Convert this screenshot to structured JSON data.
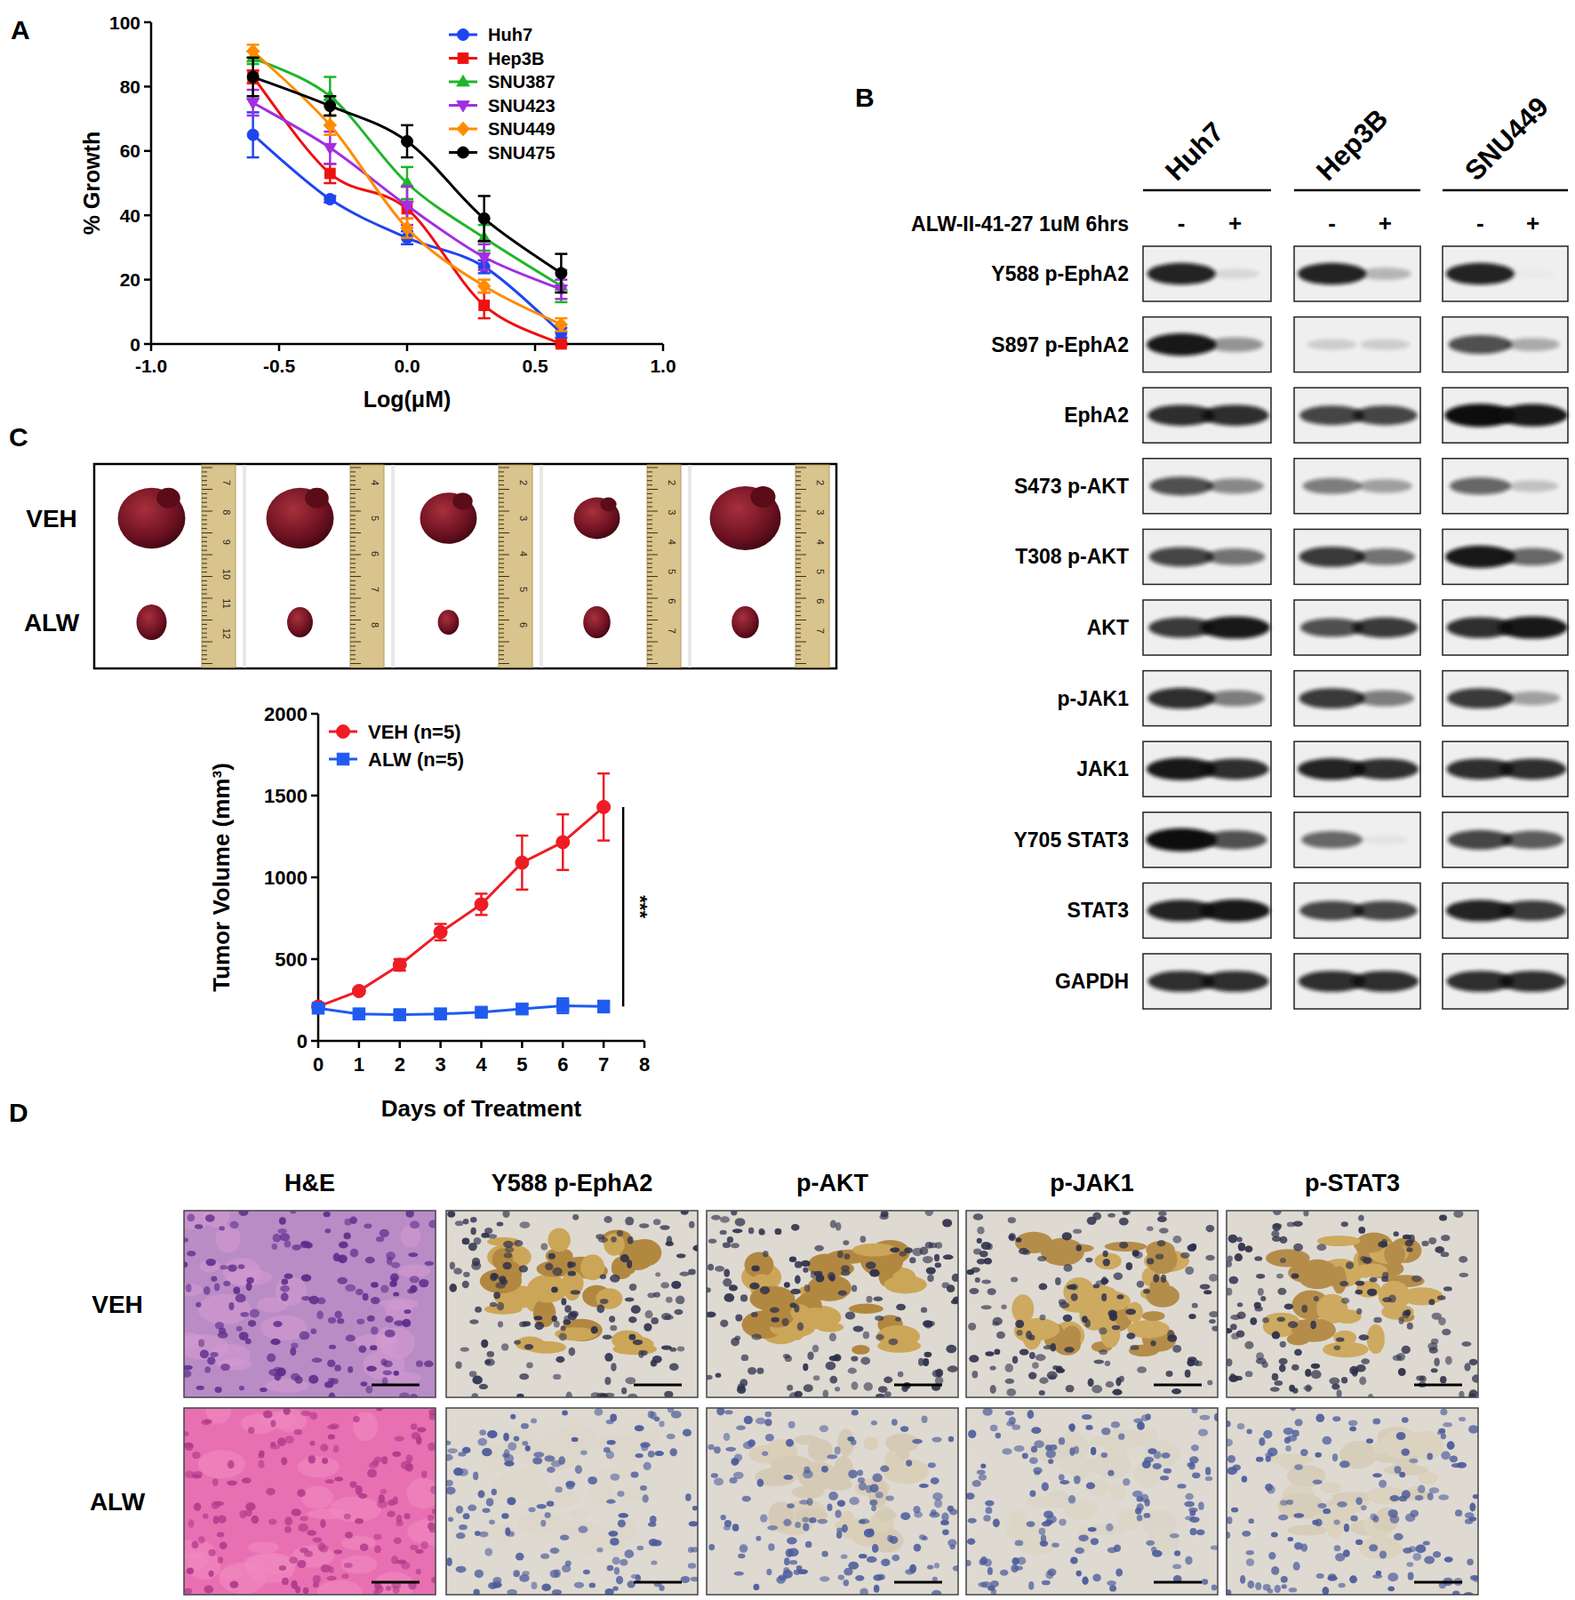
{
  "panel_labels": [
    "A",
    "B",
    "C",
    "D"
  ],
  "chart_data": [
    {
      "type": "line",
      "x_label": "Log(μM)",
      "y_label": "% Growth",
      "xlim": [
        -1,
        1
      ],
      "ylim": [
        0,
        100
      ],
      "xticks": [
        {
          "value": -1,
          "label": "-1.0"
        },
        -0.5,
        {
          "value": 0,
          "label": "0.0"
        },
        0.5,
        {
          "value": 1,
          "label": "1.0"
        }
      ],
      "yticks": [
        0,
        20,
        40,
        60,
        80,
        100
      ],
      "legend": "top-right",
      "line_style": "smooth",
      "x": [
        -0.602,
        -0.301,
        0,
        0.301,
        0.602
      ],
      "series": [
        {
          "name": "Huh7",
          "color": "#1f45f0",
          "marker": "circle",
          "values": [
            65,
            45,
            33,
            24,
            3.5
          ],
          "errors": [
            7,
            1,
            2,
            2,
            1.5
          ]
        },
        {
          "name": "Hep3B",
          "color": "#ee1111",
          "marker": "square",
          "values": [
            83,
            53,
            42,
            12,
            0
          ],
          "errors": [
            2,
            3,
            3,
            4,
            0.5
          ]
        },
        {
          "name": "SNU387",
          "color": "#1fb52a",
          "marker": "triangle-up",
          "values": [
            89,
            77,
            50,
            33,
            18
          ],
          "errors": [
            2,
            6,
            5,
            4,
            5
          ]
        },
        {
          "name": "SNU423",
          "color": "#a22ee0",
          "marker": "triangle-down",
          "values": [
            75,
            61,
            43,
            27,
            17
          ],
          "errors": [
            4,
            5,
            6,
            4,
            3
          ]
        },
        {
          "name": "SNU449",
          "color": "#ff8c00",
          "marker": "diamond",
          "values": [
            91,
            68,
            36,
            18,
            6
          ],
          "errors": [
            2,
            3,
            3,
            2,
            2
          ]
        },
        {
          "name": "SNU475",
          "color": "#000000",
          "marker": "circle",
          "values": [
            83,
            74,
            63,
            39,
            22
          ],
          "errors": [
            6,
            3,
            5,
            7,
            6
          ]
        }
      ]
    },
    {
      "type": "line",
      "x_label": "Days of Treatment",
      "y_label": "Tumor Volume (mm³)",
      "xlim": [
        0,
        8
      ],
      "ylim": [
        0,
        2000
      ],
      "xticks": [
        0,
        1,
        2,
        3,
        4,
        5,
        6,
        7,
        8
      ],
      "yticks": [
        0,
        500,
        1000,
        1500,
        2000
      ],
      "legend": "top-left",
      "line_style": "straight",
      "annotations": [
        "***"
      ],
      "x": [
        0,
        1,
        2,
        3,
        4,
        5,
        6,
        7
      ],
      "series": [
        {
          "name": "VEH (n=5)",
          "color": "#ee1c25",
          "marker": "circle",
          "values": [
            210,
            305,
            465,
            665,
            835,
            1090,
            1215,
            1430
          ],
          "errors": [
            10,
            15,
            35,
            50,
            65,
            165,
            170,
            205
          ]
        },
        {
          "name": "ALW (n=5)",
          "color": "#1f5bf0",
          "marker": "square",
          "values": [
            200,
            165,
            160,
            165,
            175,
            195,
            215,
            210
          ],
          "errors": [
            10,
            15,
            15,
            15,
            15,
            25,
            45,
            35
          ]
        }
      ]
    }
  ],
  "blot": {
    "cell_lines": [
      "Huh7",
      "Hep3B",
      "SNU449"
    ],
    "treatment": "ALW-II-41-27 1uM 6hrs",
    "lanes": [
      "-",
      "+"
    ],
    "rows": [
      {
        "label": "Y588 p-EphA2",
        "bands": [
          [
            0.9,
            0.1
          ],
          [
            0.9,
            0.25
          ],
          [
            0.9,
            0.02
          ]
        ]
      },
      {
        "label": "S897 p-EphA2",
        "bands": [
          [
            0.95,
            0.4
          ],
          [
            0.15,
            0.15
          ],
          [
            0.7,
            0.3
          ]
        ]
      },
      {
        "label": "EphA2",
        "bands": [
          [
            0.85,
            0.85
          ],
          [
            0.75,
            0.75
          ],
          [
            1,
            0.95
          ]
        ]
      },
      {
        "label": "S473 p-AKT",
        "bands": [
          [
            0.7,
            0.45
          ],
          [
            0.5,
            0.35
          ],
          [
            0.6,
            0.2
          ]
        ]
      },
      {
        "label": "T308 p-AKT",
        "bands": [
          [
            0.75,
            0.55
          ],
          [
            0.8,
            0.55
          ],
          [
            0.95,
            0.6
          ]
        ]
      },
      {
        "label": "AKT",
        "bands": [
          [
            0.8,
            0.95
          ],
          [
            0.7,
            0.8
          ],
          [
            0.85,
            0.95
          ]
        ]
      },
      {
        "label": "p-JAK1",
        "bands": [
          [
            0.85,
            0.5
          ],
          [
            0.8,
            0.5
          ],
          [
            0.8,
            0.35
          ]
        ]
      },
      {
        "label": "JAK1",
        "bands": [
          [
            0.95,
            0.85
          ],
          [
            0.9,
            0.85
          ],
          [
            0.85,
            0.85
          ]
        ]
      },
      {
        "label": "Y705 STAT3",
        "bands": [
          [
            1,
            0.7
          ],
          [
            0.6,
            0.05
          ],
          [
            0.75,
            0.65
          ]
        ]
      },
      {
        "label": "STAT3",
        "bands": [
          [
            0.9,
            0.95
          ],
          [
            0.75,
            0.75
          ],
          [
            0.9,
            0.8
          ]
        ]
      },
      {
        "label": "GAPDH",
        "bands": [
          [
            0.85,
            0.85
          ],
          [
            0.85,
            0.85
          ],
          [
            0.85,
            0.85
          ]
        ]
      }
    ]
  },
  "tumor_photos": {
    "rows": [
      "VEH",
      "ALW"
    ],
    "rulers": [
      [
        "7",
        "8",
        "9",
        "10",
        "11",
        "12"
      ],
      [
        "4",
        "5",
        "6",
        "7",
        "8"
      ],
      [
        "2",
        "3",
        "4",
        "5",
        "6"
      ],
      [
        "2",
        "3",
        "4",
        "5",
        "6",
        "7"
      ],
      [
        "2",
        "3",
        "4",
        "5",
        "6",
        "7"
      ]
    ]
  },
  "ihc": {
    "columns": [
      "H&E",
      "Y588 p-EphA2",
      "p-AKT",
      "p-JAK1",
      "p-STAT3"
    ],
    "rows": [
      "VEH",
      "ALW"
    ],
    "dab_intensity": [
      [
        0.8,
        0.8,
        0.75,
        0.75
      ],
      [
        0.03,
        0.15,
        0.05,
        0.12
      ]
    ]
  }
}
